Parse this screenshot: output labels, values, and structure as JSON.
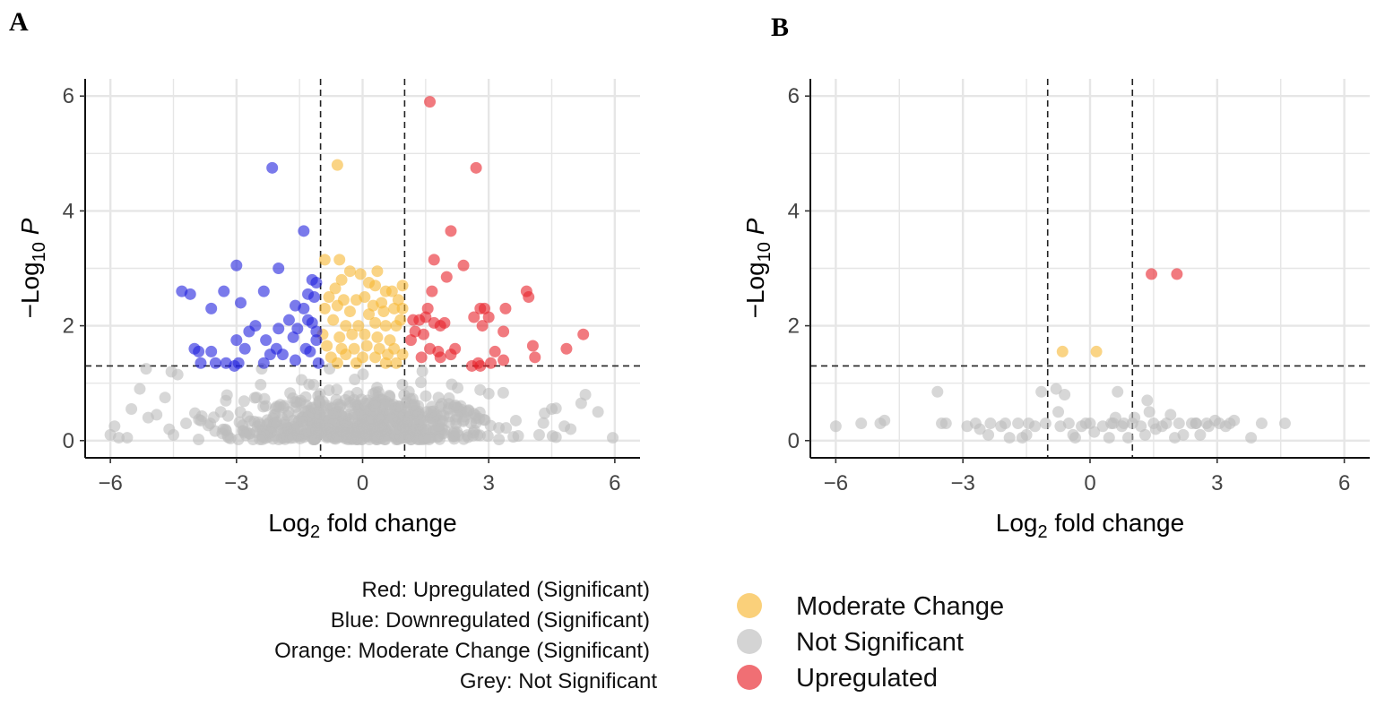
{
  "figure_labels": {
    "a": "A",
    "b": "B"
  },
  "colors": {
    "up": "#e8222a",
    "down": "#2222dd",
    "moderate": "#f7b733",
    "ns": "#bdbdbd",
    "grid": "#e6e6e6"
  },
  "chart_data": [
    {
      "panel": "A",
      "type": "scatter",
      "title": "",
      "xlabel": {
        "main": "Log",
        "sub": "2",
        "rest": " fold change"
      },
      "ylabel": {
        "main": "−Log",
        "sub": "10",
        "rest": " P"
      },
      "xlim": [
        -6.6,
        6.6
      ],
      "ylim": [
        -0.3,
        6.3
      ],
      "xticks": [
        -6,
        -3,
        0,
        3,
        6
      ],
      "xtick_labels": [
        "−6",
        "−3",
        "0",
        "3",
        "6"
      ],
      "yticks": [
        0,
        2,
        4,
        6
      ],
      "ytick_labels": [
        "0",
        "2",
        "4",
        "6"
      ],
      "thresholds": {
        "vlines": [
          -1,
          1
        ],
        "hline": 1.3
      },
      "series": [
        {
          "name": "Upregulated (Significant)",
          "color_key": "up",
          "points": [
            [
              1.6,
              5.9
            ],
            [
              2.7,
              4.75
            ],
            [
              2.1,
              3.65
            ],
            [
              1.7,
              3.15
            ],
            [
              2.4,
              3.05
            ],
            [
              2.0,
              2.85
            ],
            [
              1.65,
              2.6
            ],
            [
              1.55,
              2.3
            ],
            [
              1.2,
              2.1
            ],
            [
              1.35,
              2.1
            ],
            [
              1.5,
              2.15
            ],
            [
              1.7,
              2.05
            ],
            [
              1.85,
              2.0
            ],
            [
              1.95,
              2.05
            ],
            [
              1.25,
              1.9
            ],
            [
              1.45,
              1.85
            ],
            [
              1.15,
              1.75
            ],
            [
              1.6,
              1.6
            ],
            [
              1.8,
              1.55
            ],
            [
              2.1,
              1.5
            ],
            [
              1.4,
              1.45
            ],
            [
              1.85,
              1.45
            ],
            [
              2.2,
              1.6
            ],
            [
              2.65,
              2.15
            ],
            [
              2.8,
              2.3
            ],
            [
              2.85,
              2.0
            ],
            [
              3.0,
              2.15
            ],
            [
              2.9,
              2.3
            ],
            [
              3.4,
              2.3
            ],
            [
              3.35,
              1.9
            ],
            [
              3.9,
              2.6
            ],
            [
              3.95,
              2.5
            ],
            [
              3.15,
              1.55
            ],
            [
              3.35,
              1.4
            ],
            [
              4.05,
              1.65
            ],
            [
              4.1,
              1.45
            ],
            [
              4.85,
              1.6
            ],
            [
              5.25,
              1.85
            ],
            [
              2.6,
              1.3
            ],
            [
              2.75,
              1.35
            ],
            [
              3.05,
              1.35
            ],
            [
              2.8,
              1.3
            ]
          ]
        },
        {
          "name": "Downregulated (Significant)",
          "color_key": "down",
          "points": [
            [
              -2.15,
              4.75
            ],
            [
              -1.4,
              3.65
            ],
            [
              -3.0,
              3.05
            ],
            [
              -2.0,
              3.0
            ],
            [
              -1.2,
              2.8
            ],
            [
              -1.1,
              2.75
            ],
            [
              -4.3,
              2.6
            ],
            [
              -4.1,
              2.55
            ],
            [
              -3.3,
              2.6
            ],
            [
              -2.35,
              2.6
            ],
            [
              -1.3,
              2.55
            ],
            [
              -1.15,
              2.5
            ],
            [
              -3.6,
              2.3
            ],
            [
              -2.9,
              2.4
            ],
            [
              -1.6,
              2.35
            ],
            [
              -1.4,
              2.3
            ],
            [
              -1.75,
              2.1
            ],
            [
              -1.3,
              2.1
            ],
            [
              -1.2,
              2.05
            ],
            [
              -2.55,
              2.0
            ],
            [
              -2.7,
              1.9
            ],
            [
              -2.0,
              1.95
            ],
            [
              -1.55,
              1.95
            ],
            [
              -1.1,
              1.9
            ],
            [
              -3.0,
              1.75
            ],
            [
              -2.3,
              1.75
            ],
            [
              -1.65,
              1.8
            ],
            [
              -1.1,
              1.75
            ],
            [
              -4.0,
              1.6
            ],
            [
              -3.9,
              1.55
            ],
            [
              -3.6,
              1.55
            ],
            [
              -2.8,
              1.6
            ],
            [
              -2.05,
              1.6
            ],
            [
              -1.35,
              1.6
            ],
            [
              -1.25,
              1.55
            ],
            [
              -3.85,
              1.35
            ],
            [
              -3.5,
              1.35
            ],
            [
              -3.25,
              1.35
            ],
            [
              -3.05,
              1.3
            ],
            [
              -2.95,
              1.35
            ],
            [
              -2.35,
              1.35
            ],
            [
              -2.2,
              1.5
            ],
            [
              -1.9,
              1.5
            ],
            [
              -1.6,
              1.4
            ],
            [
              -1.05,
              1.35
            ]
          ]
        },
        {
          "name": "Moderate Change (Significant)",
          "color_key": "moderate",
          "points": [
            [
              -0.6,
              4.8
            ],
            [
              -0.9,
              3.15
            ],
            [
              -0.55,
              3.15
            ],
            [
              -0.3,
              2.95
            ],
            [
              -0.05,
              2.9
            ],
            [
              -0.5,
              2.8
            ],
            [
              0.15,
              2.75
            ],
            [
              0.35,
              2.95
            ],
            [
              0.3,
              2.7
            ],
            [
              -0.65,
              2.65
            ],
            [
              0.55,
              2.6
            ],
            [
              0.7,
              2.6
            ],
            [
              0.95,
              2.7
            ],
            [
              -0.8,
              2.5
            ],
            [
              -0.45,
              2.45
            ],
            [
              -0.15,
              2.45
            ],
            [
              0.05,
              2.5
            ],
            [
              0.25,
              2.35
            ],
            [
              0.45,
              2.4
            ],
            [
              0.85,
              2.45
            ],
            [
              -0.9,
              2.3
            ],
            [
              -0.6,
              2.35
            ],
            [
              -0.3,
              2.25
            ],
            [
              0.15,
              2.2
            ],
            [
              0.5,
              2.25
            ],
            [
              0.75,
              2.3
            ],
            [
              0.95,
              2.3
            ],
            [
              -0.7,
              2.1
            ],
            [
              -0.4,
              2.0
            ],
            [
              -0.1,
              2.0
            ],
            [
              0.3,
              2.05
            ],
            [
              0.55,
              2.0
            ],
            [
              0.8,
              2.0
            ],
            [
              0.9,
              2.1
            ],
            [
              -0.95,
              1.85
            ],
            [
              -0.55,
              1.8
            ],
            [
              -0.25,
              1.85
            ],
            [
              0.05,
              1.85
            ],
            [
              0.35,
              1.8
            ],
            [
              0.65,
              1.75
            ],
            [
              -0.85,
              1.65
            ],
            [
              -0.5,
              1.6
            ],
            [
              -0.2,
              1.6
            ],
            [
              0.1,
              1.65
            ],
            [
              0.4,
              1.6
            ],
            [
              0.75,
              1.6
            ],
            [
              -0.75,
              1.45
            ],
            [
              -0.4,
              1.5
            ],
            [
              0.0,
              1.45
            ],
            [
              0.3,
              1.45
            ],
            [
              0.6,
              1.5
            ],
            [
              0.95,
              1.5
            ],
            [
              -0.6,
              1.35
            ],
            [
              -0.15,
              1.35
            ],
            [
              0.55,
              1.35
            ],
            [
              0.8,
              1.35
            ]
          ]
        },
        {
          "name": "Not Significant",
          "color_key": "ns",
          "generated": 650,
          "points": [
            [
              -6.0,
              0.1
            ],
            [
              -5.9,
              0.25
            ],
            [
              -5.8,
              0.05
            ],
            [
              -5.6,
              0.05
            ],
            [
              -5.5,
              0.55
            ],
            [
              -5.3,
              0.9
            ],
            [
              -5.1,
              0.4
            ],
            [
              -4.9,
              0.45
            ],
            [
              -5.15,
              1.25
            ],
            [
              -4.7,
              0.75
            ],
            [
              -4.55,
              1.2
            ],
            [
              -4.4,
              1.15
            ],
            [
              -4.5,
              0.1
            ],
            [
              -4.2,
              0.3
            ],
            [
              4.2,
              0.1
            ],
            [
              4.5,
              0.55
            ],
            [
              4.8,
              0.25
            ],
            [
              4.95,
              0.2
            ],
            [
              5.2,
              0.65
            ],
            [
              5.3,
              0.8
            ],
            [
              5.95,
              0.05
            ],
            [
              5.6,
              0.5
            ]
          ]
        }
      ]
    },
    {
      "panel": "B",
      "type": "scatter",
      "title": "",
      "xlabel": {
        "main": "Log",
        "sub": "2",
        "rest": " fold change"
      },
      "ylabel": {
        "main": "−Log",
        "sub": "10",
        "rest": " P"
      },
      "xlim": [
        -6.6,
        6.6
      ],
      "ylim": [
        -0.3,
        6.3
      ],
      "xticks": [
        -6,
        -3,
        0,
        3,
        6
      ],
      "xtick_labels": [
        "−6",
        "−3",
        "0",
        "3",
        "6"
      ],
      "yticks": [
        0,
        2,
        4,
        6
      ],
      "ytick_labels": [
        "0",
        "2",
        "4",
        "6"
      ],
      "thresholds": {
        "vlines": [
          -1,
          1
        ],
        "hline": 1.3
      },
      "series": [
        {
          "name": "Upregulated",
          "color_key": "up",
          "points": [
            [
              1.45,
              2.9
            ],
            [
              2.05,
              2.9
            ]
          ]
        },
        {
          "name": "Moderate Change",
          "color_key": "moderate",
          "points": [
            [
              -0.65,
              1.55
            ],
            [
              0.15,
              1.55
            ]
          ]
        },
        {
          "name": "Not Significant",
          "color_key": "ns",
          "points": [
            [
              -6.0,
              0.25
            ],
            [
              -5.4,
              0.3
            ],
            [
              -4.95,
              0.3
            ],
            [
              -4.85,
              0.35
            ],
            [
              -3.6,
              0.85
            ],
            [
              -3.5,
              0.3
            ],
            [
              -3.4,
              0.3
            ],
            [
              -2.9,
              0.25
            ],
            [
              -2.7,
              0.3
            ],
            [
              -2.6,
              0.2
            ],
            [
              -2.4,
              0.1
            ],
            [
              -2.35,
              0.3
            ],
            [
              -2.1,
              0.25
            ],
            [
              -2.0,
              0.3
            ],
            [
              -1.9,
              0.05
            ],
            [
              -1.7,
              0.3
            ],
            [
              -1.6,
              0.05
            ],
            [
              -1.5,
              0.1
            ],
            [
              -1.45,
              0.3
            ],
            [
              -1.3,
              0.25
            ],
            [
              -1.15,
              0.85
            ],
            [
              -1.05,
              0.3
            ],
            [
              -0.8,
              0.9
            ],
            [
              -0.75,
              0.5
            ],
            [
              -0.7,
              0.25
            ],
            [
              -0.6,
              0.8
            ],
            [
              -0.5,
              0.3
            ],
            [
              -0.4,
              0.1
            ],
            [
              -0.35,
              0.05
            ],
            [
              -0.2,
              0.25
            ],
            [
              -0.1,
              0.3
            ],
            [
              0.0,
              0.3
            ],
            [
              0.1,
              0.15
            ],
            [
              0.3,
              0.25
            ],
            [
              0.45,
              0.05
            ],
            [
              0.5,
              0.3
            ],
            [
              0.6,
              0.4
            ],
            [
              0.65,
              0.85
            ],
            [
              0.75,
              0.25
            ],
            [
              0.8,
              0.3
            ],
            [
              0.9,
              0.05
            ],
            [
              1.0,
              0.3
            ],
            [
              1.05,
              0.4
            ],
            [
              1.2,
              0.25
            ],
            [
              1.3,
              0.1
            ],
            [
              1.4,
              0.5
            ],
            [
              1.5,
              0.3
            ],
            [
              1.55,
              0.2
            ],
            [
              1.7,
              0.25
            ],
            [
              1.8,
              0.3
            ],
            [
              1.9,
              0.45
            ],
            [
              2.0,
              0.05
            ],
            [
              2.1,
              0.3
            ],
            [
              2.2,
              0.1
            ],
            [
              2.4,
              0.3
            ],
            [
              2.5,
              0.3
            ],
            [
              2.6,
              0.1
            ],
            [
              2.75,
              0.3
            ],
            [
              2.8,
              0.25
            ],
            [
              2.95,
              0.35
            ],
            [
              3.05,
              0.3
            ],
            [
              3.2,
              0.25
            ],
            [
              3.3,
              0.3
            ],
            [
              3.4,
              0.35
            ],
            [
              3.8,
              0.05
            ],
            [
              4.05,
              0.3
            ],
            [
              4.6,
              0.3
            ],
            [
              2.5,
              0.3
            ],
            [
              1.35,
              0.7
            ],
            [
              0.55,
              0.3
            ]
          ]
        }
      ]
    }
  ],
  "panel_a_notes": [
    "Red: Upregulated (Significant)",
    "Blue: Downregulated (Significant)",
    "Orange: Moderate Change (Significant)",
    "Grey: Not Significant"
  ],
  "panel_b_legend": [
    {
      "label": "Moderate Change",
      "color_key": "moderate"
    },
    {
      "label": "Not Significant",
      "color_key": "ns"
    },
    {
      "label": "Upregulated",
      "color_key": "up"
    }
  ]
}
